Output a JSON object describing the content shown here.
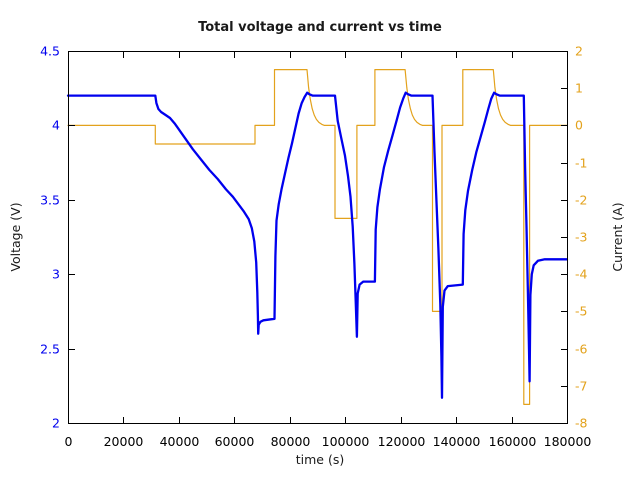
{
  "title": "Total voltage and current vs time",
  "colors": {
    "voltage": "#0000ee",
    "current": "#e3a21c",
    "axis": "#000000",
    "background": "#ffffff"
  },
  "chart_data": {
    "type": "line",
    "title": "Total voltage and current vs time",
    "xlabel": "time (s)",
    "ylabel_left": "Voltage (V)",
    "ylabel_right": "Current (A)",
    "x_range": [
      0,
      180000
    ],
    "x_ticks": [
      0,
      20000,
      40000,
      60000,
      80000,
      100000,
      120000,
      140000,
      160000,
      180000
    ],
    "y_left_range": [
      2,
      4.5
    ],
    "y_left_ticks": [
      2,
      2.5,
      3,
      3.5,
      4,
      4.5
    ],
    "y_right_range": [
      -8,
      2
    ],
    "y_right_ticks": [
      2,
      1,
      0,
      -1,
      -2,
      -3,
      -4,
      -5,
      -6,
      -7,
      -8
    ],
    "grid": false,
    "legend": "none",
    "series": [
      {
        "name": "Voltage (V)",
        "axis": "left",
        "color": "#0000ee",
        "width": 2.3,
        "points": [
          [
            0,
            4.2
          ],
          [
            31500,
            4.2
          ],
          [
            31900,
            4.15
          ],
          [
            32600,
            4.11
          ],
          [
            33600,
            4.09
          ],
          [
            35200,
            4.07
          ],
          [
            36800,
            4.05
          ],
          [
            38600,
            4.01
          ],
          [
            40500,
            3.96
          ],
          [
            42400,
            3.91
          ],
          [
            45000,
            3.84
          ],
          [
            48000,
            3.77
          ],
          [
            51000,
            3.7
          ],
          [
            54000,
            3.64
          ],
          [
            57000,
            3.57
          ],
          [
            59500,
            3.52
          ],
          [
            61500,
            3.47
          ],
          [
            63500,
            3.42
          ],
          [
            65200,
            3.37
          ],
          [
            66300,
            3.31
          ],
          [
            67200,
            3.22
          ],
          [
            67900,
            3.08
          ],
          [
            68300,
            2.88
          ],
          [
            68500,
            2.72
          ],
          [
            68600,
            2.6
          ],
          [
            68800,
            2.66
          ],
          [
            69400,
            2.68
          ],
          [
            70500,
            2.69
          ],
          [
            74500,
            2.7
          ],
          [
            74800,
            3.12
          ],
          [
            75200,
            3.36
          ],
          [
            76000,
            3.47
          ],
          [
            77000,
            3.57
          ],
          [
            78300,
            3.68
          ],
          [
            79500,
            3.78
          ],
          [
            80800,
            3.88
          ],
          [
            82000,
            3.98
          ],
          [
            83200,
            4.08
          ],
          [
            84300,
            4.15
          ],
          [
            85300,
            4.19
          ],
          [
            86300,
            4.22
          ],
          [
            87000,
            4.21
          ],
          [
            88200,
            4.2
          ],
          [
            96300,
            4.2
          ],
          [
            97300,
            4.03
          ],
          [
            98500,
            3.92
          ],
          [
            99900,
            3.8
          ],
          [
            101000,
            3.66
          ],
          [
            101900,
            3.52
          ],
          [
            102700,
            3.32
          ],
          [
            103300,
            3.07
          ],
          [
            103800,
            2.8
          ],
          [
            104200,
            2.58
          ],
          [
            104500,
            2.87
          ],
          [
            105200,
            2.93
          ],
          [
            106500,
            2.95
          ],
          [
            110700,
            2.95
          ],
          [
            111000,
            3.3
          ],
          [
            111600,
            3.45
          ],
          [
            112500,
            3.57
          ],
          [
            114000,
            3.72
          ],
          [
            115500,
            3.83
          ],
          [
            117000,
            3.93
          ],
          [
            118500,
            4.03
          ],
          [
            119800,
            4.12
          ],
          [
            120900,
            4.18
          ],
          [
            121800,
            4.22
          ],
          [
            122600,
            4.21
          ],
          [
            123800,
            4.2
          ],
          [
            131500,
            4.2
          ],
          [
            132200,
            3.82
          ],
          [
            132900,
            3.5
          ],
          [
            133600,
            3.17
          ],
          [
            134300,
            2.8
          ],
          [
            134700,
            2.45
          ],
          [
            134900,
            2.17
          ],
          [
            135200,
            2.78
          ],
          [
            135800,
            2.89
          ],
          [
            137000,
            2.92
          ],
          [
            142400,
            2.93
          ],
          [
            142700,
            3.27
          ],
          [
            143300,
            3.43
          ],
          [
            144300,
            3.56
          ],
          [
            145800,
            3.7
          ],
          [
            147300,
            3.82
          ],
          [
            148800,
            3.92
          ],
          [
            150300,
            4.02
          ],
          [
            151600,
            4.11
          ],
          [
            152700,
            4.18
          ],
          [
            153700,
            4.22
          ],
          [
            154500,
            4.21
          ],
          [
            155700,
            4.2
          ],
          [
            164400,
            4.2
          ],
          [
            164900,
            3.72
          ],
          [
            165400,
            3.32
          ],
          [
            165900,
            2.88
          ],
          [
            166300,
            2.5
          ],
          [
            166500,
            2.28
          ],
          [
            166800,
            2.86
          ],
          [
            167300,
            3.0
          ],
          [
            168000,
            3.06
          ],
          [
            169500,
            3.09
          ],
          [
            172000,
            3.1
          ],
          [
            180000,
            3.1
          ]
        ]
      },
      {
        "name": "Current (A)",
        "axis": "right",
        "color": "#e3a21c",
        "width": 1.2,
        "points": [
          [
            0,
            0
          ],
          [
            31500,
            0
          ],
          [
            31500,
            -0.5
          ],
          [
            67450,
            -0.5
          ],
          [
            67450,
            0
          ],
          [
            74500,
            0
          ],
          [
            74500,
            1.5
          ],
          [
            86200,
            1.5
          ],
          [
            86800,
            1.02
          ],
          [
            87400,
            0.7
          ],
          [
            88100,
            0.45
          ],
          [
            88800,
            0.28
          ],
          [
            89600,
            0.16
          ],
          [
            90500,
            0.08
          ],
          [
            91500,
            0.03
          ],
          [
            92500,
            0
          ],
          [
            96300,
            0
          ],
          [
            96300,
            -2.5
          ],
          [
            104200,
            -2.5
          ],
          [
            104200,
            0
          ],
          [
            110700,
            0
          ],
          [
            110700,
            1.5
          ],
          [
            121600,
            1.5
          ],
          [
            122200,
            1.02
          ],
          [
            122800,
            0.7
          ],
          [
            123500,
            0.45
          ],
          [
            124200,
            0.28
          ],
          [
            125000,
            0.16
          ],
          [
            125900,
            0.08
          ],
          [
            126900,
            0.03
          ],
          [
            127900,
            0
          ],
          [
            131500,
            0
          ],
          [
            131500,
            -5
          ],
          [
            134900,
            -5
          ],
          [
            134900,
            0
          ],
          [
            142400,
            0
          ],
          [
            142400,
            1.5
          ],
          [
            153400,
            1.5
          ],
          [
            154000,
            1.02
          ],
          [
            154600,
            0.7
          ],
          [
            155300,
            0.45
          ],
          [
            156000,
            0.28
          ],
          [
            156800,
            0.16
          ],
          [
            157700,
            0.08
          ],
          [
            158700,
            0.03
          ],
          [
            159700,
            0
          ],
          [
            164400,
            0
          ],
          [
            164400,
            -7.5
          ],
          [
            166500,
            -7.5
          ],
          [
            166500,
            0
          ],
          [
            180000,
            0
          ]
        ]
      }
    ]
  }
}
